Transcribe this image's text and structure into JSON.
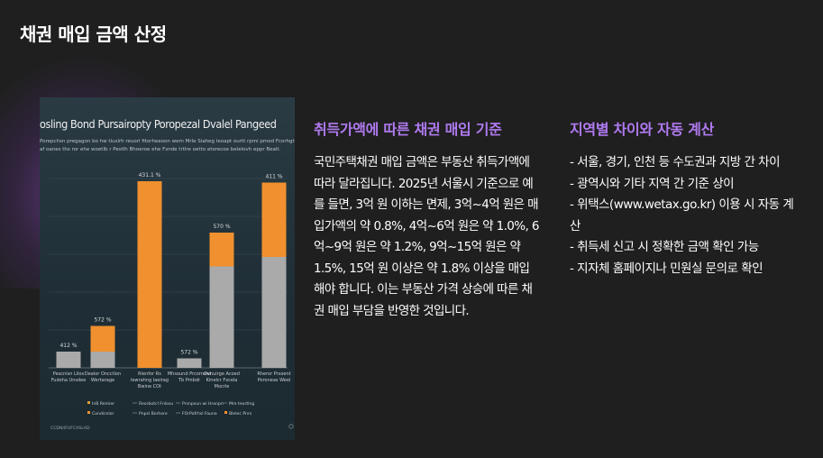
{
  "page": {
    "title": "채권 매입 금액 산정"
  },
  "chart_image": {
    "title": "osling Bond Pursairopty Poropezal Dvalel Pangeed",
    "subtitle_lines": [
      "Porepchsn pregagon  bo hw tiuslrh reuorl fitorheaoon wem Mrle Siaheg leoapt ourtt rpmi pmod Fcorhgtgabo",
      "af oanes  ths ror ehe woetlb r Pestlh Bhoeroe ehe Fsnde trtlre oetto etorecoe belelovh eppr Bealt."
    ],
    "chart_data": {
      "type": "bar",
      "categories": [
        "Pescnisn Lilos Fudoha Unsdee",
        "Dealor Oncction Wertarage",
        "Rlenfor Rs lewrahng Iaeirag Bwine COt",
        "Mhsound Prcorrend Tb Pmbdr",
        "Ovnuirge Acoed Kinelcr Fxcela Mocrle",
        "Rheror Prsoent Poroneas Weel"
      ],
      "series": [
        {
          "name": "InB Remier",
          "color": "#aaaaaa",
          "values": [
            12,
            12,
            0,
            7,
            75,
            82
          ]
        },
        {
          "name": "Condicelor",
          "color": "#f0902e",
          "values": [
            0,
            19,
            138,
            0,
            25,
            55
          ]
        }
      ],
      "data_labels": [
        "412 %",
        "572 %",
        "431.1 %",
        "572 %",
        "570 %",
        "411 %"
      ],
      "legend": [
        "InB Remier",
        "Reorbotcl Fnlosu",
        "Prsnpsun wi Hronpn",
        "Mre teortlng",
        "Condicelor",
        "Pnpsl Borhore",
        "FOrPafrhsl Fauna",
        "Blelec Pnrs"
      ],
      "footer_text": "CCDN/IFUFCASLAD",
      "ylim": [
        0,
        140
      ],
      "grid": true
    }
  },
  "left_section": {
    "heading": "취득가액에 따른 채권 매입 기준",
    "body": "국민주택채권 매입 금액은 부동산 취득가액에 따라 달라집니다. 2025년 서울시 기준으로 예를 들면, 3억 원 이하는 면제, 3억~4억 원은 매입가액의 약 0.8%, 4억~6억 원은 약 1.0%, 6억~9억 원은 약 1.2%, 9억~15억 원은 약 1.5%, 15억 원 이상은 약 1.8% 이상을 매입해야 합니다. 이는 부동산 가격 상승에 따른 채권 매입 부담을 반영한 것입니다."
  },
  "right_section": {
    "heading": "지역별 차이와 자동 계산",
    "items": [
      "- 서울, 경기, 인천 등 수도권과 지방 간 차이",
      "- 광역시와 기타 지역 간 기준 상이",
      "- 위택스(www.wetax.go.kr) 이용 시 자동 계산",
      "- 취득세 신고 시 정확한 금액 확인 가능",
      "- 지자체 홈페이지나 민원실 문의로 확인"
    ]
  }
}
